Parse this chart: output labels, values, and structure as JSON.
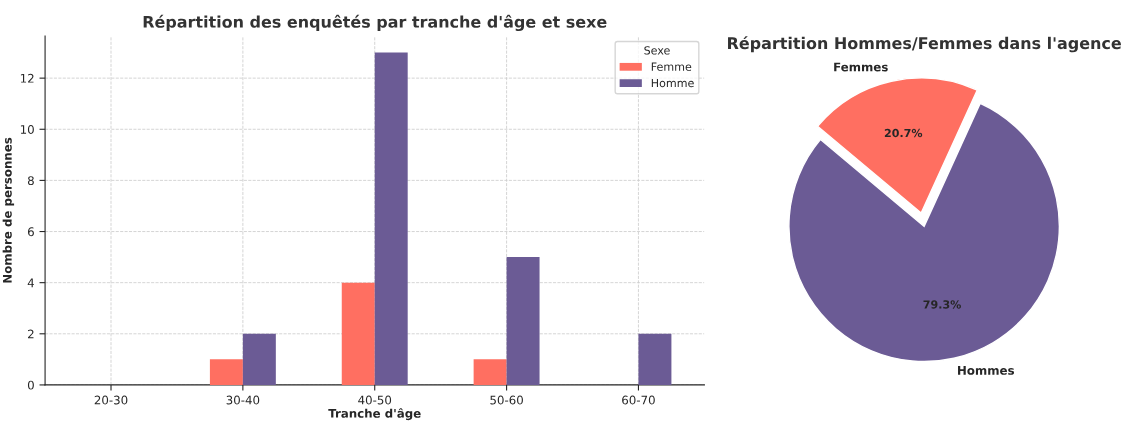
{
  "chart_data": [
    {
      "type": "bar",
      "title": "Répartition des enquêtés par tranche d'âge et sexe",
      "xlabel": "Tranche d'âge",
      "ylabel": "Nombre de personnes",
      "legend_title": "Sexe",
      "categories": [
        "20-30",
        "30-40",
        "40-50",
        "50-60",
        "60-70"
      ],
      "series": [
        {
          "name": "Femme",
          "color": "#ff6f61",
          "values": [
            0,
            1,
            4,
            1,
            0
          ]
        },
        {
          "name": "Homme",
          "color": "#6b5b95",
          "values": [
            0,
            2,
            13,
            5,
            2
          ]
        }
      ],
      "ylim": [
        0,
        13.65
      ],
      "yticks": [
        0,
        2,
        4,
        6,
        8,
        10,
        12
      ],
      "grid": true,
      "legend": "top right"
    },
    {
      "type": "pie",
      "title": "Répartition Hommes/Femmes dans l'agence",
      "categories": [
        "Hommes",
        "Femmes"
      ],
      "values": [
        79.3,
        20.7
      ],
      "colors": [
        "#6b5b95",
        "#ff6f61"
      ],
      "value_labels": [
        "79.3%",
        "20.7%"
      ]
    }
  ]
}
